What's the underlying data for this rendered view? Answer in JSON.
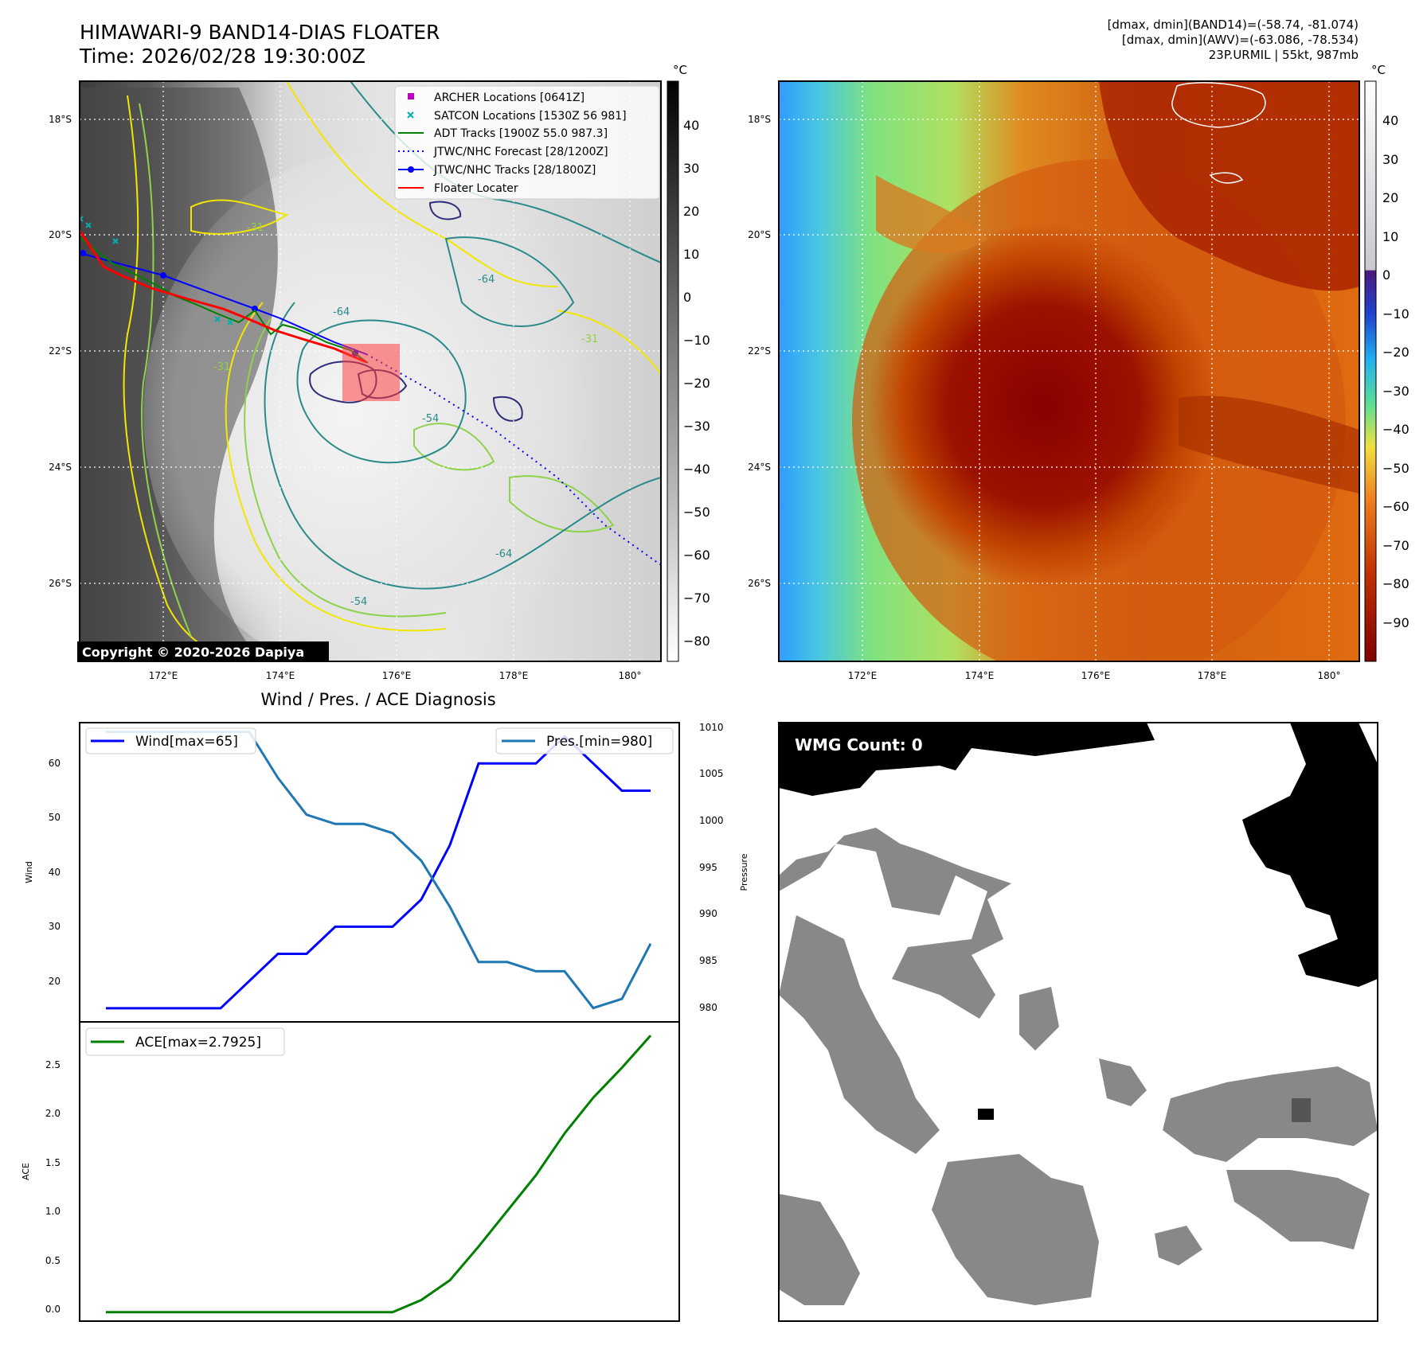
{
  "header": {
    "title_line1": "HIMAWARI-9 BAND14-DIAS FLOATER",
    "title_line2": "Time: 2026/02/28 19:30:00Z",
    "info_line1": "[dmax, dmin](BAND14)=(-58.74, -81.074)",
    "info_line2": "[dmax, dmin](AWV)=(-63.086, -78.534)",
    "info_line3": "23P.URMIL | 55kt, 987mb"
  },
  "map": {
    "lat_labels": [
      "18°S",
      "20°S",
      "22°S",
      "24°S",
      "26°S"
    ],
    "lon_labels": [
      "172°E",
      "174°E",
      "176°E",
      "178°E",
      "180°"
    ],
    "legend": [
      {
        "label": "ARCHER Locations [0641Z]",
        "color": "#c000c0",
        "marker": "square"
      },
      {
        "label": "SATCON Locations [1530Z 56 981]",
        "color": "#00b0b0",
        "marker": "x"
      },
      {
        "label": "ADT Tracks [1900Z 55.0 987.3]",
        "color": "#008000",
        "marker": "line"
      },
      {
        "label": "JTWC/NHC Forecast [28/1200Z]",
        "color": "#0000ff",
        "marker": "dotted"
      },
      {
        "label": "JTWC/NHC Tracks [28/1800Z]",
        "color": "#0000ff",
        "marker": "line-dot"
      },
      {
        "label": "Floater Locater",
        "color": "#ff0000",
        "marker": "line"
      }
    ],
    "contour_labels": [
      "-64",
      "-64",
      "-64",
      "-31",
      "-31",
      "-31",
      "-54",
      "-54"
    ],
    "copyright": "Copyright © 2020-2026 Dapiya",
    "colorbar_gray": {
      "unit": "°C",
      "ticks": [
        "40",
        "30",
        "20",
        "10",
        "0",
        "−10",
        "−20",
        "−30",
        "−40",
        "−50",
        "−60",
        "−70",
        "−80"
      ]
    },
    "colorbar_color": {
      "unit": "°C",
      "ticks": [
        "40",
        "30",
        "20",
        "10",
        "0",
        "−10",
        "−20",
        "−30",
        "−40",
        "−50",
        "−60",
        "−70",
        "−80",
        "−90"
      ]
    }
  },
  "diagnosis": {
    "title": "Wind / Pres. / ACE Diagnosis",
    "wind_ylabel": "Wind",
    "pres_ylabel": "Pressure",
    "ace_ylabel": "ACE",
    "wind_legend": "Wind[max=65]",
    "pres_legend": "Pres.[min=980]",
    "ace_legend": "ACE[max=2.7925]",
    "wind_ticks": [
      "60",
      "50",
      "40",
      "30",
      "20"
    ],
    "pres_ticks": [
      "1010",
      "1005",
      "1000",
      "995",
      "990",
      "985",
      "980"
    ],
    "ace_ticks": [
      "2.5",
      "2.0",
      "1.5",
      "1.0",
      "0.5",
      "0.0"
    ]
  },
  "wmg": {
    "label": "WMG Count: 0"
  },
  "chart_data": [
    {
      "type": "line",
      "title": "Wind / Pres. / ACE Diagnosis",
      "x": [
        0,
        1,
        2,
        3,
        4,
        5,
        6,
        7,
        8,
        9,
        10,
        11,
        12,
        13,
        14,
        15,
        16,
        17,
        18,
        19
      ],
      "series": [
        {
          "name": "Wind[max=65]",
          "axis": "left",
          "color": "#0000ff",
          "values": [
            15,
            15,
            15,
            15,
            15,
            20,
            25,
            25,
            30,
            30,
            30,
            35,
            45,
            60,
            60,
            60,
            65,
            60,
            55,
            55
          ]
        },
        {
          "name": "Pres.[min=980]",
          "axis": "right",
          "color": "#1f77b4",
          "values": [
            1010,
            1010,
            1010,
            1010,
            1010,
            1010,
            1005,
            1001,
            1000,
            1000,
            999,
            996,
            991,
            985,
            985,
            984,
            984,
            980,
            981,
            987
          ]
        }
      ],
      "ylabel": "Wind",
      "ylim": [
        12.5,
        67.5
      ],
      "y2label": "Pressure",
      "y2lim": [
        978.5,
        1011
      ]
    },
    {
      "type": "line",
      "x": [
        0,
        1,
        2,
        3,
        4,
        5,
        6,
        7,
        8,
        9,
        10,
        11,
        12,
        13,
        14,
        15,
        16,
        17,
        18,
        19
      ],
      "series": [
        {
          "name": "ACE[max=2.7925]",
          "color": "#008000",
          "values": [
            0,
            0,
            0,
            0,
            0,
            0,
            0,
            0,
            0,
            0,
            0,
            0.1225,
            0.3225,
            0.6625,
            1.0225,
            1.3825,
            1.805,
            2.165,
            2.4675,
            2.7925
          ]
        }
      ],
      "ylabel": "ACE",
      "ylim": [
        -0.09,
        2.93
      ]
    }
  ]
}
